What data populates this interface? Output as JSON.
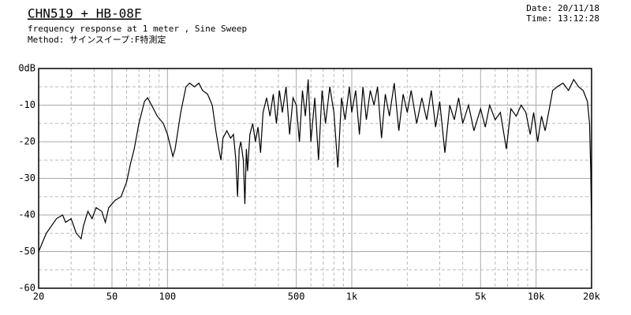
{
  "chart_data": {
    "type": "line",
    "title": "CHN519 + HB-08F",
    "subtitle": "frequency response at 1 meter , Sine Sweep",
    "method": "Method: サインスイープ:F特測定",
    "date": "Date: 20/11/18",
    "time": "Time: 13:12:28",
    "log_x": true,
    "grid": true,
    "color": "#000000",
    "xlim": [
      20,
      20000
    ],
    "xticks": [
      20,
      50,
      100,
      500,
      {
        "value": 1000,
        "label": "1k"
      },
      {
        "value": 5000,
        "label": "5k"
      },
      {
        "value": 10000,
        "label": "10k"
      },
      {
        "value": 20000,
        "label": "20k"
      }
    ],
    "xminorticks": [
      30,
      40,
      60,
      70,
      80,
      90,
      200,
      300,
      400,
      600,
      700,
      800,
      900,
      2000,
      3000,
      4000,
      6000,
      7000,
      8000,
      9000
    ],
    "ylim": [
      -60,
      0
    ],
    "yticks": [
      {
        "value": 0,
        "label": "0dB"
      },
      -10,
      -20,
      -30,
      -40,
      -50,
      -60
    ],
    "yminorticks": [
      -5,
      -15,
      -25,
      -35,
      -45,
      -55
    ],
    "x": [
      20,
      22,
      25,
      27,
      28,
      30,
      32,
      34,
      35,
      37,
      39,
      41,
      44,
      46,
      48,
      52,
      56,
      60,
      63,
      66,
      70,
      75,
      78,
      82,
      88,
      95,
      100,
      107,
      110,
      118,
      126,
      132,
      140,
      148,
      155,
      165,
      175,
      183,
      190,
      195,
      200,
      210,
      220,
      228,
      235,
      240,
      245,
      250,
      258,
      263,
      268,
      272,
      280,
      290,
      300,
      310,
      320,
      330,
      345,
      360,
      375,
      390,
      405,
      420,
      440,
      460,
      480,
      500,
      520,
      540,
      560,
      580,
      600,
      630,
      660,
      690,
      720,
      760,
      800,
      840,
      880,
      920,
      970,
      1000,
      1050,
      1100,
      1150,
      1200,
      1260,
      1320,
      1380,
      1450,
      1520,
      1600,
      1700,
      1800,
      1900,
      2000,
      2100,
      2250,
      2400,
      2550,
      2700,
      2850,
      3000,
      3200,
      3400,
      3600,
      3800,
      4000,
      4300,
      4600,
      5000,
      5300,
      5600,
      6000,
      6400,
      6900,
      7300,
      7800,
      8300,
      8800,
      9300,
      9700,
      10200,
      10700,
      11200,
      11800,
      12300,
      13000,
      14000,
      15000,
      16000,
      17000,
      18000,
      19000,
      19500,
      19800,
      20000
    ],
    "values": [
      -50,
      -45,
      -41,
      -40,
      -42,
      -41,
      -45,
      -46.5,
      -43,
      -39,
      -41,
      -38,
      -39,
      -42,
      -38,
      -36,
      -35,
      -31,
      -26,
      -22,
      -15,
      -9,
      -8,
      -10,
      -13,
      -15,
      -18,
      -24,
      -22,
      -12,
      -5,
      -4,
      -5,
      -4,
      -6,
      -7,
      -10,
      -17,
      -22,
      -25,
      -19,
      -17,
      -19,
      -18,
      -25,
      -35,
      -22,
      -20,
      -25,
      -37,
      -22,
      -28,
      -18,
      -15,
      -20,
      -16,
      -23,
      -12,
      -8,
      -13,
      -7,
      -15,
      -6,
      -12,
      -5,
      -18,
      -8,
      -10,
      -20,
      -6,
      -13,
      -3,
      -20,
      -8,
      -25,
      -6,
      -15,
      -5,
      -12,
      -27,
      -8,
      -14,
      -5,
      -12,
      -6,
      -18,
      -5,
      -14,
      -6,
      -10,
      -5,
      -19,
      -7,
      -13,
      -4,
      -17,
      -7,
      -12,
      -6,
      -15,
      -8,
      -14,
      -6,
      -16,
      -9,
      -23,
      -10,
      -14,
      -8,
      -15,
      -10,
      -17,
      -11,
      -16,
      -10,
      -14,
      -12,
      -22,
      -11,
      -13,
      -10,
      -12,
      -18,
      -12,
      -20,
      -13,
      -17,
      -11,
      -6,
      -5,
      -4,
      -6,
      -3,
      -5,
      -6,
      -9,
      -15,
      -28,
      -44
    ]
  }
}
